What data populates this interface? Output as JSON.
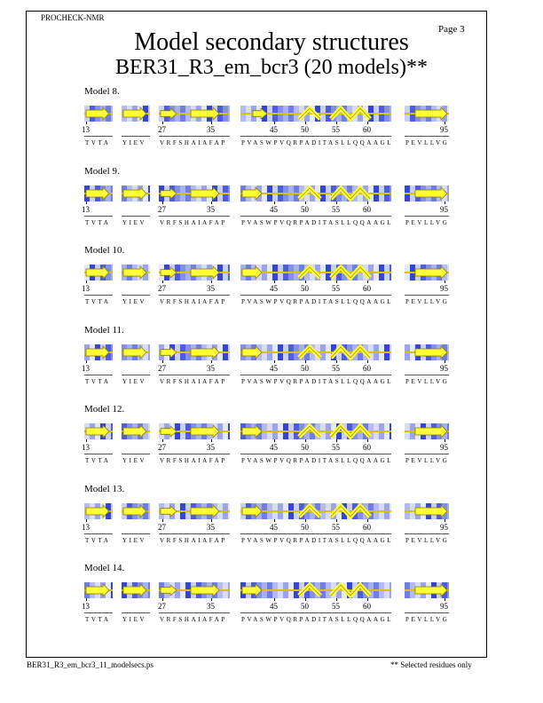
{
  "header": {
    "program": "PROCHECK-NMR",
    "page": "Page  3"
  },
  "title": "Model secondary structures",
  "subtitle": "BER31_R3_em_bcr3 (20 models)**",
  "footer": {
    "filename": "BER31_R3_em_bcr3_11_modelsecs.ps",
    "note": "** Selected residues only"
  },
  "segments": [
    {
      "residue_start": "13",
      "sequence": "TVTA"
    },
    {
      "residue_start": "",
      "sequence": "YIEV"
    },
    {
      "residue_start": "27",
      "residue_mid": "35",
      "sequence": "VRFSHAIAFAP"
    },
    {
      "residue_labels": [
        "45",
        "50",
        "55",
        "60"
      ],
      "sequence": "PVASWPVQRPADITASLLQQAAGL"
    },
    {
      "residue_end": "95",
      "sequence": "PEVLLVG"
    }
  ],
  "models": [
    {
      "label": "Model  8."
    },
    {
      "label": "Model  9."
    },
    {
      "label": "Model 10."
    },
    {
      "label": "Model 11."
    },
    {
      "label": "Model 12."
    },
    {
      "label": "Model 13."
    },
    {
      "label": "Model 14."
    }
  ],
  "colors": {
    "strand": "#ffff33",
    "helix": "#ffff33",
    "shade_dark": "#2d3bd6",
    "shade_light": "#e6e9fb"
  }
}
